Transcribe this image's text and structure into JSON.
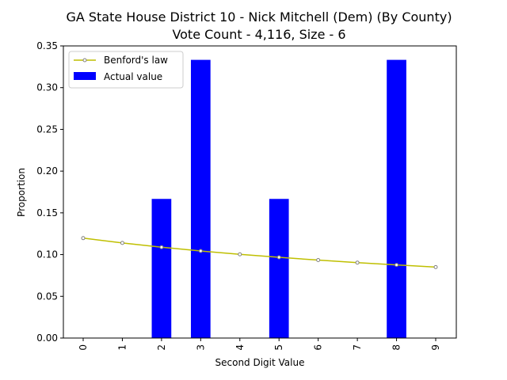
{
  "chart_data": {
    "type": "bar",
    "title_line1": "GA State House District 10 - Nick Mitchell (Dem) (By County)",
    "title_line2": "Vote Count - 4,116, Size - 6",
    "xlabel": "Second Digit Value",
    "ylabel": "Proportion",
    "categories": [
      "0",
      "1",
      "2",
      "3",
      "4",
      "5",
      "6",
      "7",
      "8",
      "9"
    ],
    "ylim": [
      0,
      0.35
    ],
    "yticks": [
      "0.00",
      "0.05",
      "0.10",
      "0.15",
      "0.20",
      "0.25",
      "0.30",
      "0.35"
    ],
    "grid": false,
    "legend_position": "top-left",
    "series": [
      {
        "name": "Actual value",
        "kind": "bar",
        "color": "#0000ff",
        "values": [
          0,
          0,
          0.1667,
          0.3333,
          0,
          0.1667,
          0,
          0,
          0.3333,
          0
        ]
      },
      {
        "name": "Benford's law",
        "kind": "line",
        "color": "#bfbf00",
        "marker_color": "#808080",
        "values": [
          0.1197,
          0.1139,
          0.1088,
          0.1043,
          0.1003,
          0.0967,
          0.0934,
          0.0904,
          0.0876,
          0.085
        ]
      }
    ]
  }
}
